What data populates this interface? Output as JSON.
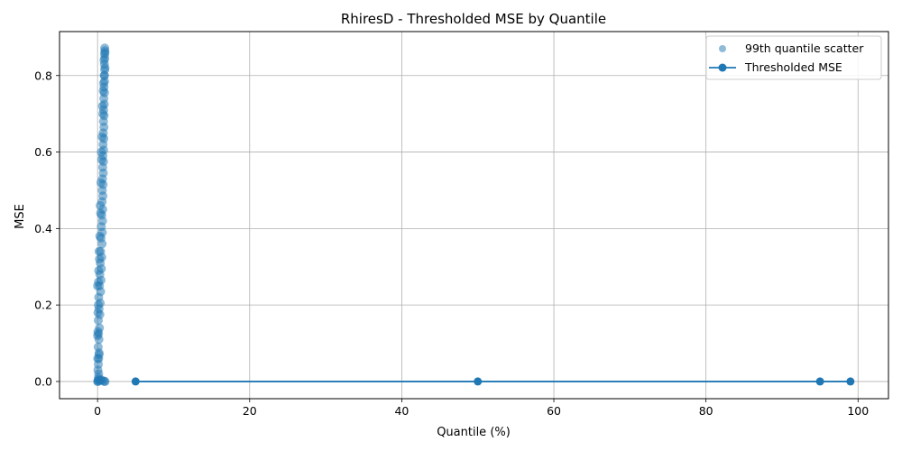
{
  "chart_data": {
    "type": "line",
    "title": "RhiresD - Thresholded MSE by Quantile",
    "xlabel": "Quantile (%)",
    "ylabel": "MSE",
    "xlim": [
      -5,
      104
    ],
    "ylim": [
      -0.045,
      0.915
    ],
    "xticks": [
      0,
      20,
      40,
      60,
      80,
      100
    ],
    "yticks": [
      0.0,
      0.2,
      0.4,
      0.6,
      0.8
    ],
    "grid": true,
    "legend_position": "top-right",
    "series": [
      {
        "name": "99th quantile scatter",
        "kind": "scatter",
        "color": "#1f77b4",
        "alpha": 0.5,
        "points": [
          [
            0.02,
            0.0
          ],
          [
            0.05,
            0.0
          ],
          [
            0.08,
            0.002
          ],
          [
            0.1,
            0.005
          ],
          [
            0.12,
            0.01
          ],
          [
            0.15,
            0.02
          ],
          [
            0.05,
            0.03
          ],
          [
            0.1,
            0.045
          ],
          [
            0.15,
            0.06
          ],
          [
            0.2,
            0.075
          ],
          [
            0.08,
            0.09
          ],
          [
            0.18,
            0.11
          ],
          [
            0.12,
            0.125
          ],
          [
            0.25,
            0.14
          ],
          [
            0.1,
            0.16
          ],
          [
            0.3,
            0.175
          ],
          [
            0.2,
            0.19
          ],
          [
            0.35,
            0.205
          ],
          [
            0.15,
            0.22
          ],
          [
            0.4,
            0.235
          ],
          [
            0.25,
            0.25
          ],
          [
            0.45,
            0.265
          ],
          [
            0.3,
            0.28
          ],
          [
            0.5,
            0.295
          ],
          [
            0.35,
            0.31
          ],
          [
            0.55,
            0.325
          ],
          [
            0.4,
            0.34
          ],
          [
            0.6,
            0.36
          ],
          [
            0.45,
            0.375
          ],
          [
            0.62,
            0.39
          ],
          [
            0.5,
            0.405
          ],
          [
            0.65,
            0.42
          ],
          [
            0.55,
            0.435
          ],
          [
            0.68,
            0.45
          ],
          [
            0.6,
            0.47
          ],
          [
            0.7,
            0.485
          ],
          [
            0.62,
            0.5
          ],
          [
            0.72,
            0.515
          ],
          [
            0.65,
            0.53
          ],
          [
            0.75,
            0.545
          ],
          [
            0.68,
            0.56
          ],
          [
            0.78,
            0.575
          ],
          [
            0.7,
            0.59
          ],
          [
            0.8,
            0.605
          ],
          [
            0.72,
            0.62
          ],
          [
            0.82,
            0.635
          ],
          [
            0.75,
            0.65
          ],
          [
            0.84,
            0.665
          ],
          [
            0.78,
            0.68
          ],
          [
            0.86,
            0.695
          ],
          [
            0.8,
            0.71
          ],
          [
            0.88,
            0.725
          ],
          [
            0.82,
            0.74
          ],
          [
            0.9,
            0.755
          ],
          [
            0.85,
            0.77
          ],
          [
            0.92,
            0.785
          ],
          [
            0.88,
            0.8
          ],
          [
            0.94,
            0.815
          ],
          [
            0.9,
            0.83
          ],
          [
            0.95,
            0.845
          ],
          [
            0.92,
            0.855
          ],
          [
            0.96,
            0.865
          ],
          [
            0.94,
            0.872
          ],
          [
            0.98,
            0.0
          ],
          [
            0.9,
            0.0
          ],
          [
            0.7,
            0.002
          ],
          [
            0.5,
            0.004
          ],
          [
            0.3,
            0.003
          ],
          [
            0.2,
            0.07
          ],
          [
            0.05,
            0.13
          ],
          [
            0.1,
            0.2
          ],
          [
            0.25,
            0.32
          ],
          [
            0.0,
            0.25
          ],
          [
            0.05,
            0.18
          ],
          [
            0.3,
            0.38
          ],
          [
            0.45,
            0.52
          ],
          [
            0.6,
            0.64
          ],
          [
            0.75,
            0.76
          ],
          [
            0.85,
            0.84
          ],
          [
            0.4,
            0.44
          ],
          [
            0.55,
            0.58
          ],
          [
            0.7,
            0.7
          ],
          [
            0.9,
            0.8
          ],
          [
            0.98,
            0.82
          ],
          [
            0.97,
            0.86
          ],
          [
            0.15,
            0.29
          ],
          [
            0.35,
            0.46
          ],
          [
            0.5,
            0.6
          ],
          [
            0.65,
            0.72
          ],
          [
            0.8,
            0.78
          ],
          [
            0.0,
            0.12
          ],
          [
            0.02,
            0.06
          ],
          [
            0.2,
            0.34
          ],
          [
            0.12,
            0.26
          ]
        ]
      },
      {
        "name": "Thresholded MSE",
        "kind": "line",
        "color": "#1f77b4",
        "marker": "circle",
        "points": [
          [
            5,
            0.0
          ],
          [
            50,
            0.0
          ],
          [
            95,
            0.0
          ],
          [
            99,
            0.0
          ]
        ]
      }
    ]
  }
}
